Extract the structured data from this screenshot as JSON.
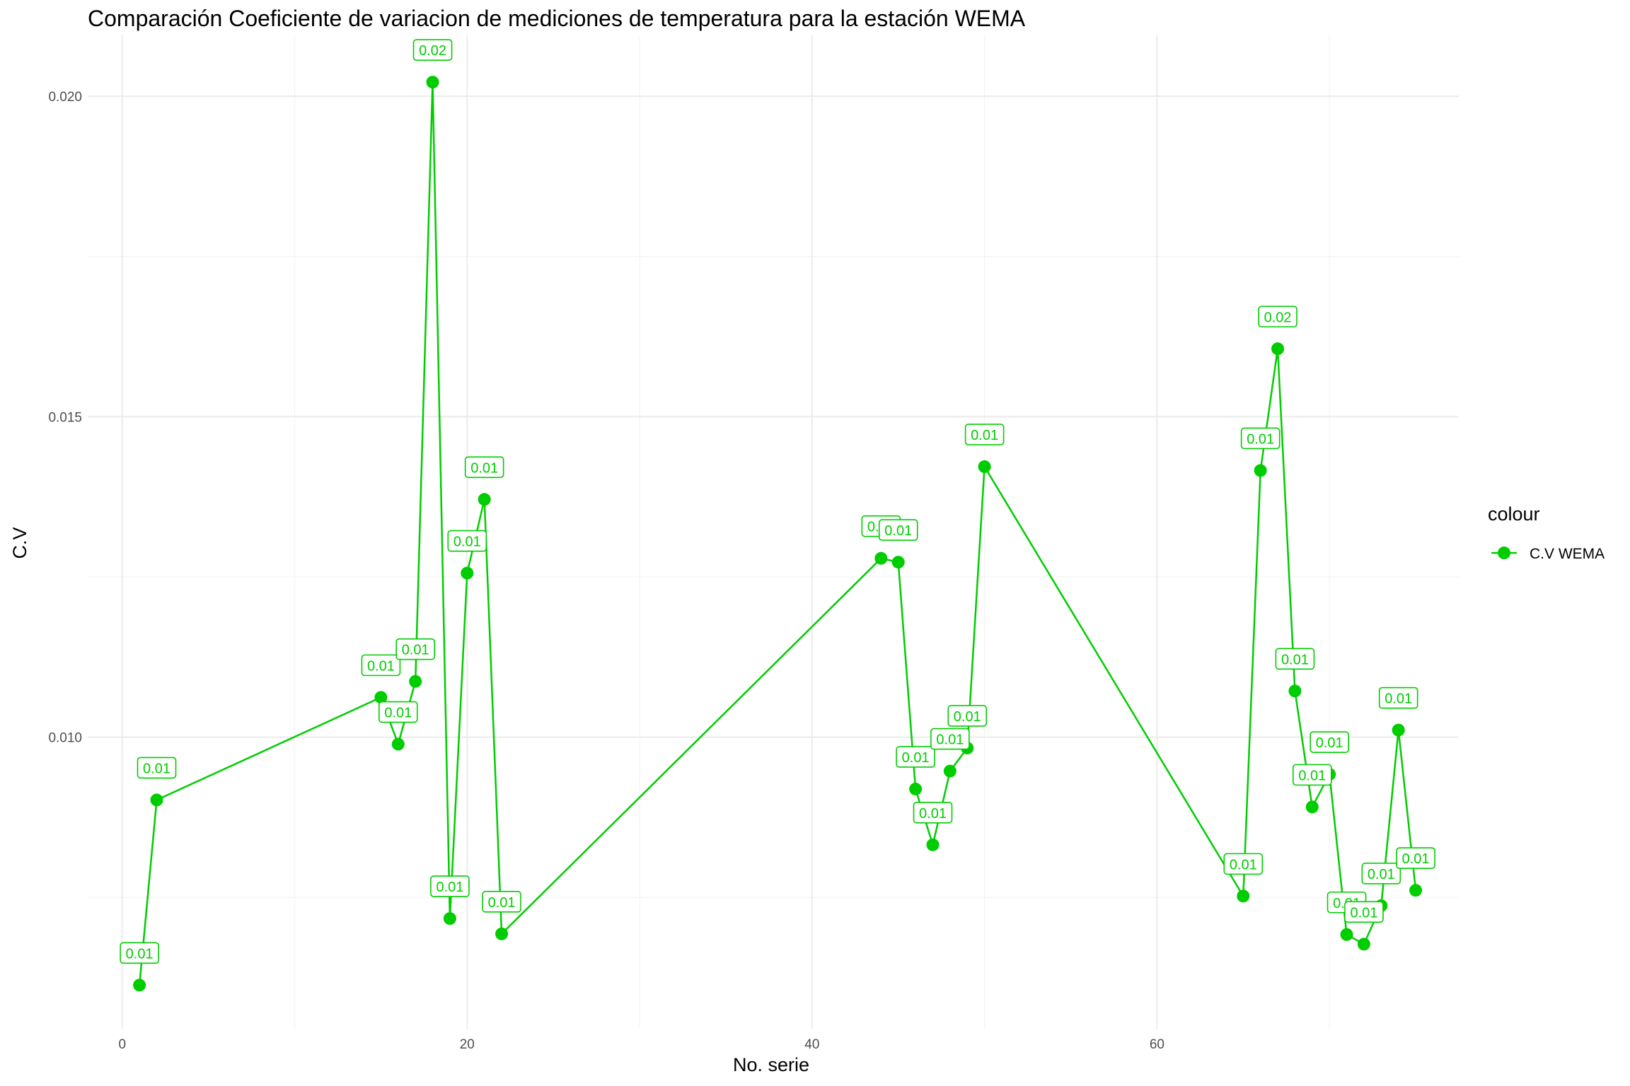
{
  "chart_data": {
    "type": "line",
    "title": "Comparación Coeficiente de variacion de mediciones de temperatura para la estación WEMA",
    "xlabel": "No. serie",
    "ylabel": "C.V",
    "xlim": [
      -2,
      77.5
    ],
    "ylim": [
      0.00545,
      0.02095
    ],
    "x_ticks": [
      0,
      20,
      40,
      60
    ],
    "x_tick_labels": [
      "0",
      "20",
      "40",
      "60"
    ],
    "y_ticks": [
      0.01,
      0.015,
      0.02
    ],
    "y_tick_labels": [
      "0.010",
      "0.015",
      "0.020"
    ],
    "grid": true,
    "legend": {
      "title": "colour",
      "position": "right",
      "entries": [
        "C.V WEMA"
      ]
    },
    "series": [
      {
        "name": "C.V WEMA",
        "color": "#00cd00",
        "points": [
          {
            "x": 1,
            "y": 0.00613,
            "label": "0.01"
          },
          {
            "x": 2,
            "y": 0.00902,
            "label": "0.01"
          },
          {
            "x": 15,
            "y": 0.01062,
            "label": "0.01"
          },
          {
            "x": 16,
            "y": 0.00989,
            "label": "0.01"
          },
          {
            "x": 17,
            "y": 0.01087,
            "label": "0.01"
          },
          {
            "x": 18,
            "y": 0.02022,
            "label": "0.02"
          },
          {
            "x": 19,
            "y": 0.00717,
            "label": "0.01"
          },
          {
            "x": 20,
            "y": 0.01256,
            "label": "0.01"
          },
          {
            "x": 21,
            "y": 0.01371,
            "label": "0.01"
          },
          {
            "x": 22,
            "y": 0.00693,
            "label": "0.01"
          },
          {
            "x": 44,
            "y": 0.01279,
            "label": "0.01"
          },
          {
            "x": 45,
            "y": 0.01273,
            "label": "0.01"
          },
          {
            "x": 46,
            "y": 0.00919,
            "label": "0.01"
          },
          {
            "x": 47,
            "y": 0.00832,
            "label": "0.01"
          },
          {
            "x": 48,
            "y": 0.00947,
            "label": "0.01"
          },
          {
            "x": 49,
            "y": 0.00983,
            "label": "0.01"
          },
          {
            "x": 50,
            "y": 0.01422,
            "label": "0.01"
          },
          {
            "x": 65,
            "y": 0.00752,
            "label": "0.01"
          },
          {
            "x": 66,
            "y": 0.01416,
            "label": "0.01"
          },
          {
            "x": 67,
            "y": 0.01606,
            "label": "0.02"
          },
          {
            "x": 68,
            "y": 0.01072,
            "label": "0.01"
          },
          {
            "x": 69,
            "y": 0.00891,
            "label": "0.01"
          },
          {
            "x": 70,
            "y": 0.00942,
            "label": "0.01"
          },
          {
            "x": 71,
            "y": 0.00692,
            "label": "0.01"
          },
          {
            "x": 72,
            "y": 0.00677,
            "label": "0.01"
          },
          {
            "x": 73,
            "y": 0.00737,
            "label": "0.01"
          },
          {
            "x": 74,
            "y": 0.01011,
            "label": "0.01"
          },
          {
            "x": 75,
            "y": 0.00761,
            "label": "0.01"
          }
        ]
      }
    ]
  }
}
